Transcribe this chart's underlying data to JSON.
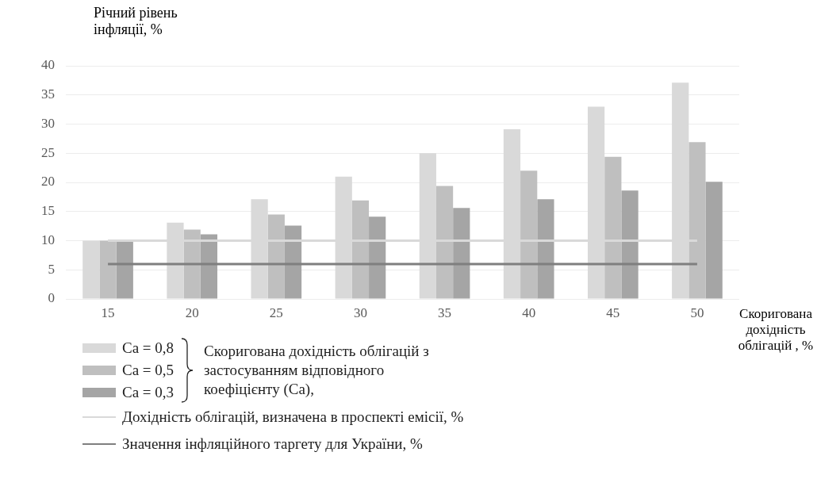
{
  "chart_data": {
    "type": "bar",
    "xlabel": "Скоригована дохідність облігацій , %",
    "ylabel": "Річний рівень інфляції, %",
    "categories": [
      "15",
      "20",
      "25",
      "30",
      "35",
      "40",
      "45",
      "50"
    ],
    "series": [
      {
        "name": "Са = 0,8",
        "color": "#d9d9d9",
        "values": [
          10,
          13.1,
          17.1,
          21,
          25,
          29.1,
          33,
          37.1
        ]
      },
      {
        "name": "Са = 0,5",
        "color": "#bfbfbf",
        "values": [
          10,
          11.9,
          14.5,
          16.9,
          19.4,
          22,
          24.4,
          26.9
        ]
      },
      {
        "name": "Са = 0,3",
        "color": "#a5a5a5",
        "values": [
          9.8,
          11.1,
          12.6,
          14.1,
          15.6,
          17.1,
          18.6,
          20.1
        ]
      },
      {
        "name": "Дохідність облігацій, визначена в проспекті  емісії, %",
        "type": "line",
        "color": "#d9d9d9",
        "values": [
          10,
          10,
          10,
          10,
          10,
          10,
          10,
          10
        ]
      },
      {
        "name": "Значення інфляційного таргету для України, %",
        "type": "line",
        "color": "#7f7f7f",
        "values": [
          6,
          6,
          6,
          6,
          6,
          6,
          6,
          6
        ]
      }
    ],
    "annotations": [
      "Скоригована дохідність облігацій з застосуванням відповідного коефіцієнту (Са),"
    ],
    "ylim": [
      0,
      40
    ],
    "yticks": [
      0,
      5,
      10,
      15,
      20,
      25,
      30,
      35,
      40
    ],
    "grid": "y",
    "legend": "bottom"
  }
}
